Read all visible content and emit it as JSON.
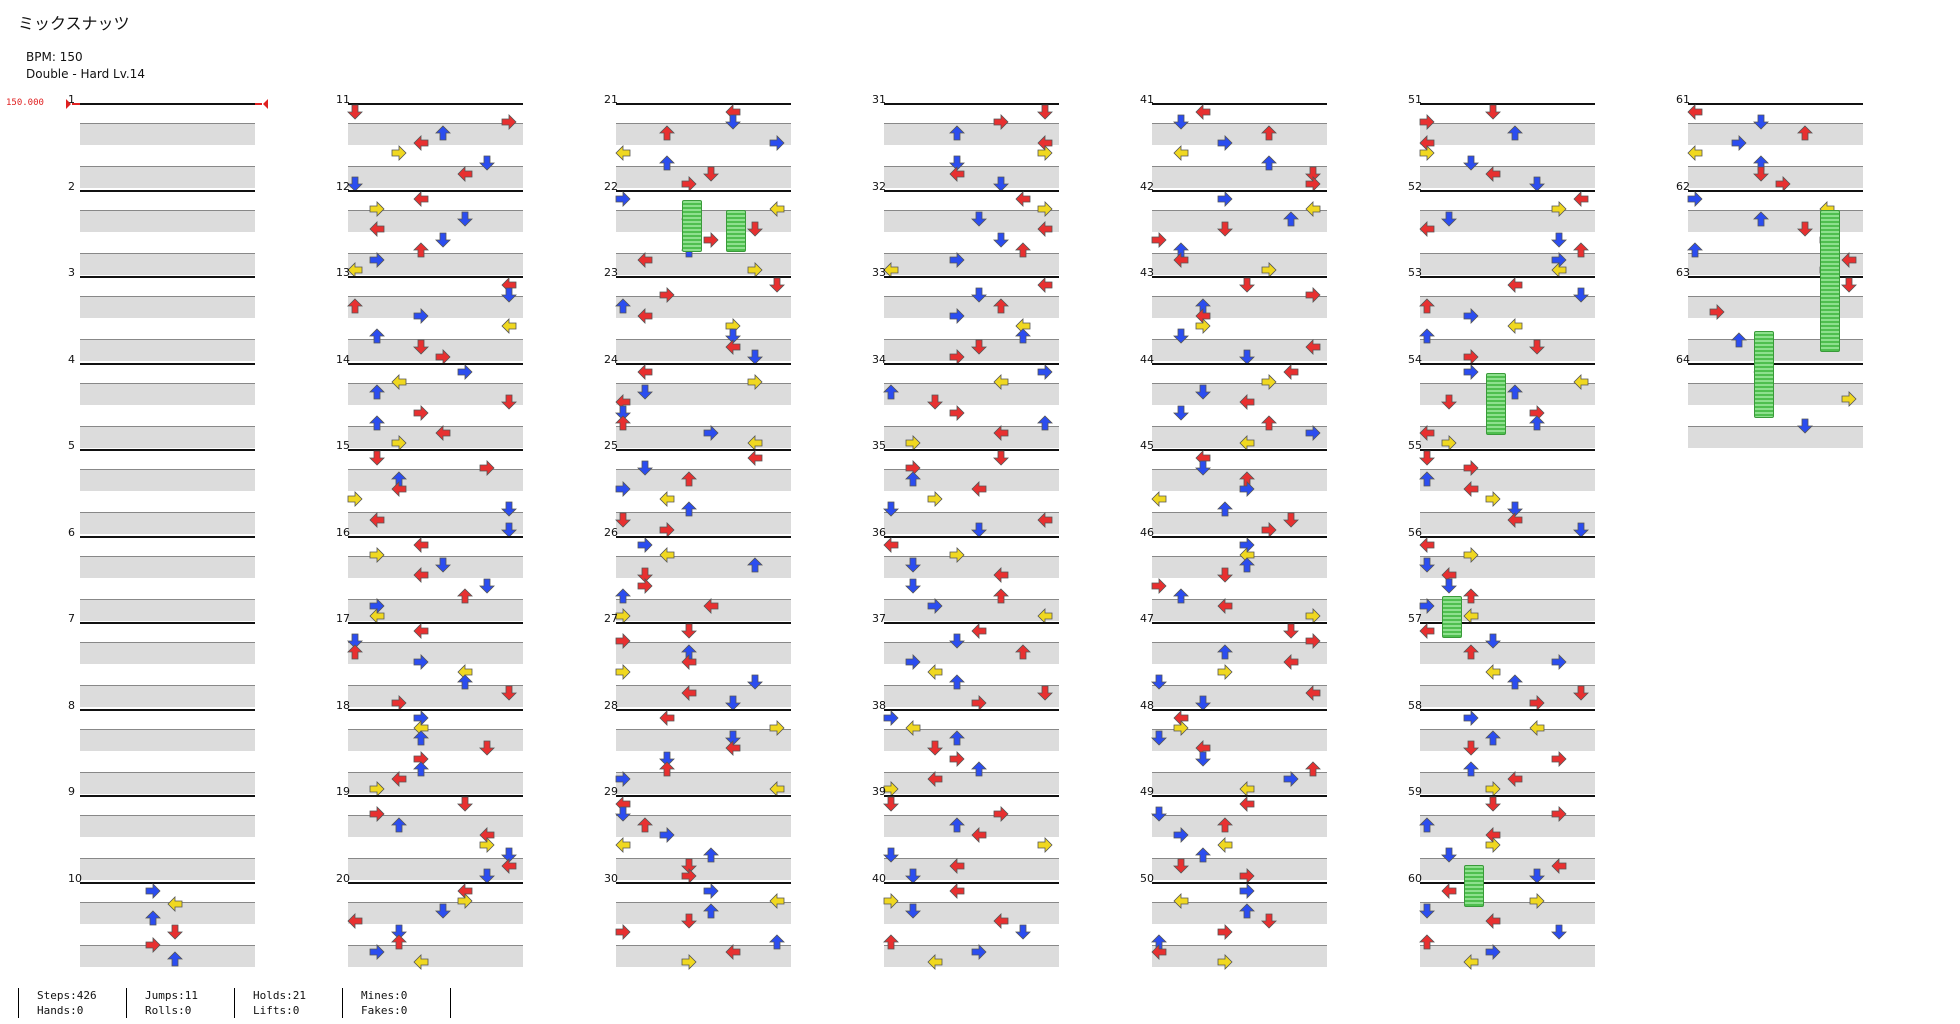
{
  "song": {
    "title": "ミックスナッツ",
    "bpm_text": "BPM: 150",
    "difficulty_text": "Double - Hard  Lv.14",
    "bpm_marker": "150.000"
  },
  "measures": [
    "1",
    "2",
    "3",
    "4",
    "5",
    "6",
    "7",
    "8",
    "9",
    "10",
    "11",
    "12",
    "13",
    "14",
    "15",
    "16",
    "17",
    "18",
    "19",
    "20",
    "21",
    "22",
    "23",
    "24",
    "25",
    "26",
    "27",
    "28",
    "29",
    "30",
    "31",
    "32",
    "33",
    "34",
    "35",
    "36",
    "37",
    "38",
    "39",
    "40",
    "41",
    "42",
    "43",
    "44",
    "45",
    "46",
    "47",
    "48",
    "49",
    "50",
    "51",
    "52",
    "53",
    "54",
    "55",
    "56",
    "57",
    "58",
    "59",
    "60",
    "61",
    "62",
    "63",
    "64"
  ],
  "stats": {
    "steps": "Steps:426",
    "hands": "Hands:0",
    "jumps": "Jumps:11",
    "rolls": "Rolls:0",
    "holds": "Holds:21",
    "lifts": "Lifts:0",
    "mines": "Mines:0",
    "fakes": "Fakes:0"
  },
  "colors": {
    "quarter": "#e83030",
    "eighth": "#2b4df0",
    "sixteenth": "#f0d820",
    "hold": "#6fd36f"
  },
  "arrow_pattern": [
    {
      "d": "l",
      "c": "quarter"
    },
    {
      "d": "d",
      "c": "eighth"
    },
    {
      "d": "u",
      "c": "quarter"
    },
    {
      "d": "r",
      "c": "eighth"
    },
    {
      "d": "l",
      "c": "sixteenth"
    },
    {
      "d": "u",
      "c": "eighth"
    },
    {
      "d": "d",
      "c": "quarter"
    },
    {
      "d": "r",
      "c": "quarter"
    },
    {
      "d": "u",
      "c": "eighth"
    },
    {
      "d": "l",
      "c": "quarter"
    },
    {
      "d": "r",
      "c": "sixteenth"
    },
    {
      "d": "d",
      "c": "eighth"
    }
  ]
}
